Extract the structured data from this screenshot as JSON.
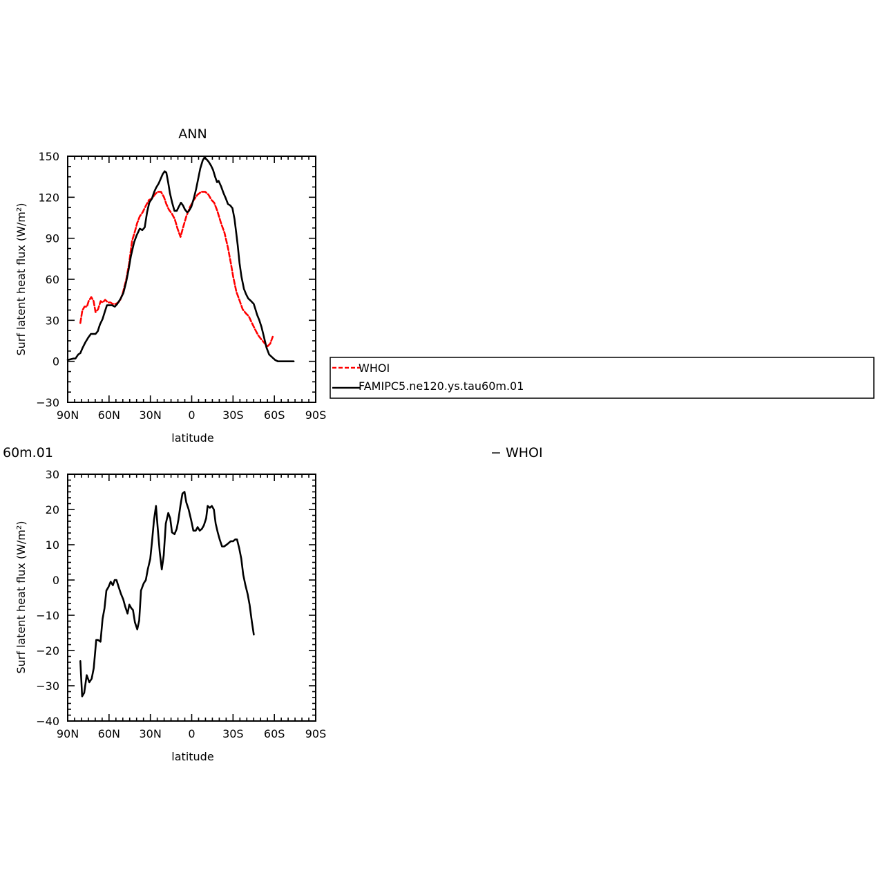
{
  "chart_data": [
    {
      "type": "line",
      "title": "ANN",
      "xlabel": "latitude",
      "ylabel": "Surf latent heat flux (W/m²)",
      "xlim": [
        90,
        -90
      ],
      "ylim": [
        -30,
        150
      ],
      "x_ticks": [
        {
          "value": 90,
          "label": "90N"
        },
        {
          "value": 60,
          "label": "60N"
        },
        {
          "value": 30,
          "label": "30N"
        },
        {
          "value": 0,
          "label": "0"
        },
        {
          "value": -30,
          "label": "30S"
        },
        {
          "value": -60,
          "label": "60S"
        },
        {
          "value": -90,
          "label": "90S"
        }
      ],
      "y_ticks": [
        {
          "value": -30,
          "label": "−30"
        },
        {
          "value": 0,
          "label": "0"
        },
        {
          "value": 30,
          "label": "30"
        },
        {
          "value": 60,
          "label": "60"
        },
        {
          "value": 90,
          "label": "90"
        },
        {
          "value": 120,
          "label": "120"
        },
        {
          "value": 150,
          "label": "150"
        }
      ],
      "series": [
        {
          "name": "WHOI",
          "color": "#ff0000",
          "dash": true,
          "points": [
            [
              80.8,
              28
            ],
            [
              79.4,
              37
            ],
            [
              77.8,
              40
            ],
            [
              76,
              40
            ],
            [
              74.8,
              44
            ],
            [
              72.9,
              47
            ],
            [
              71.2,
              44
            ],
            [
              69.8,
              36
            ],
            [
              68,
              38
            ],
            [
              66.1,
              44
            ],
            [
              64.6,
              43
            ],
            [
              62.8,
              45
            ],
            [
              60.7,
              43
            ],
            [
              58.9,
              43
            ],
            [
              57.5,
              42
            ],
            [
              54.9,
              42
            ],
            [
              52.2,
              44
            ],
            [
              50,
              50
            ],
            [
              47.5,
              60
            ],
            [
              45.4,
              72
            ],
            [
              43.3,
              88
            ],
            [
              41.2,
              95
            ],
            [
              39.6,
              101
            ],
            [
              37.7,
              106
            ],
            [
              35.6,
              109
            ],
            [
              33.2,
              114
            ],
            [
              31,
              118
            ],
            [
              28.9,
              119
            ],
            [
              26.7,
              122
            ],
            [
              24.7,
              124
            ],
            [
              22.3,
              124
            ],
            [
              20.1,
              120
            ],
            [
              18.4,
              115
            ],
            [
              16.6,
              111
            ],
            [
              14.4,
              108
            ],
            [
              12.3,
              104
            ],
            [
              10.3,
              97
            ],
            [
              8.1,
              91
            ],
            [
              6.2,
              98
            ],
            [
              3.9,
              106
            ],
            [
              1.2,
              113
            ],
            [
              -1.5,
              118
            ],
            [
              -4.3,
              122
            ],
            [
              -7,
              124
            ],
            [
              -9.8,
              124
            ],
            [
              -12.1,
              122
            ],
            [
              -14.4,
              118
            ],
            [
              -16.3,
              116
            ],
            [
              -18.6,
              110
            ],
            [
              -21.3,
              101
            ],
            [
              -23.8,
              94
            ],
            [
              -26.3,
              83
            ],
            [
              -28.4,
              72
            ],
            [
              -30.1,
              62
            ],
            [
              -32.4,
              51
            ],
            [
              -34.9,
              44
            ],
            [
              -37,
              38
            ],
            [
              -39.4,
              35
            ],
            [
              -41.4,
              33
            ],
            [
              -43.7,
              28
            ],
            [
              -46.2,
              23
            ],
            [
              -48.3,
              19
            ],
            [
              -50.6,
              16
            ],
            [
              -53.1,
              13
            ],
            [
              -55.1,
              11
            ],
            [
              -57,
              13
            ],
            [
              -58.8,
              18
            ]
          ]
        },
        {
          "name": "FAMIPC5.ne120.ys.tau60m.01",
          "color": "#000000",
          "dash": false,
          "points": [
            [
              90,
              1
            ],
            [
              86,
              2
            ],
            [
              84.4,
              2
            ],
            [
              82.4,
              5
            ],
            [
              80.8,
              6
            ],
            [
              79.1,
              10
            ],
            [
              77.1,
              14
            ],
            [
              75.3,
              17
            ],
            [
              73.2,
              20
            ],
            [
              71.5,
              20
            ],
            [
              69.8,
              20
            ],
            [
              68.2,
              22
            ],
            [
              66.6,
              27
            ],
            [
              64.7,
              31
            ],
            [
              62.8,
              37
            ],
            [
              61.5,
              41
            ],
            [
              59.7,
              41
            ],
            [
              57.8,
              41
            ],
            [
              55.8,
              40
            ],
            [
              54,
              42
            ],
            [
              51.5,
              46
            ],
            [
              49.6,
              50
            ],
            [
              47.6,
              58
            ],
            [
              46,
              66
            ],
            [
              44.1,
              77
            ],
            [
              41.8,
              87
            ],
            [
              40,
              92
            ],
            [
              37.7,
              97
            ],
            [
              35.8,
              96
            ],
            [
              34.1,
              98
            ],
            [
              32.4,
              109
            ],
            [
              30.8,
              116
            ],
            [
              28.9,
              119
            ],
            [
              27.2,
              124
            ],
            [
              25.8,
              127
            ],
            [
              24,
              130
            ],
            [
              22.7,
              133
            ],
            [
              21,
              137
            ],
            [
              19.6,
              139
            ],
            [
              18.4,
              138
            ],
            [
              17.1,
              131
            ],
            [
              15.8,
              123
            ],
            [
              14.2,
              116
            ],
            [
              12.5,
              110
            ],
            [
              10.9,
              110
            ],
            [
              9.4,
              113
            ],
            [
              7.8,
              116
            ],
            [
              6.3,
              114
            ],
            [
              4.9,
              111
            ],
            [
              3.3,
              109
            ],
            [
              2,
              110
            ],
            [
              0.3,
              113
            ],
            [
              -1.5,
              119
            ],
            [
              -3.2,
              126
            ],
            [
              -4.6,
              133
            ],
            [
              -6.2,
              141
            ],
            [
              -8,
              147
            ],
            [
              -9.2,
              149
            ],
            [
              -10.6,
              148
            ],
            [
              -12.3,
              146
            ],
            [
              -14.1,
              143
            ],
            [
              -15.5,
              140
            ],
            [
              -17,
              135
            ],
            [
              -18.4,
              131
            ],
            [
              -19.5,
              132
            ],
            [
              -21.3,
              128
            ],
            [
              -23.1,
              123
            ],
            [
              -24.8,
              119
            ],
            [
              -26.3,
              115
            ],
            [
              -28,
              114
            ],
            [
              -29.6,
              112
            ],
            [
              -31.1,
              104
            ],
            [
              -32.2,
              95
            ],
            [
              -33.4,
              85
            ],
            [
              -34.7,
              72
            ],
            [
              -36.1,
              62
            ],
            [
              -37.9,
              53
            ],
            [
              -39.5,
              49
            ],
            [
              -41,
              46
            ],
            [
              -43.1,
              44
            ],
            [
              -45,
              42
            ],
            [
              -46.3,
              38
            ],
            [
              -47.5,
              34
            ],
            [
              -49.1,
              30
            ],
            [
              -50.7,
              25
            ],
            [
              -52.4,
              18
            ],
            [
              -54.3,
              10
            ],
            [
              -56.2,
              5
            ],
            [
              -58.3,
              3
            ],
            [
              -60.5,
              1
            ],
            [
              -62.5,
              0
            ],
            [
              -64.4,
              0
            ],
            [
              -66.5,
              0
            ],
            [
              -68.6,
              0
            ],
            [
              -71,
              0
            ],
            [
              -74,
              0
            ]
          ]
        }
      ],
      "legend": {
        "placement": "right-of-plot",
        "entries": [
          "WHOI",
          "FAMIPC5.ne120.ys.tau60m.01"
        ]
      }
    },
    {
      "type": "line",
      "title": "60m.01",
      "title_right": "− WHOI",
      "xlabel": "latitude",
      "ylabel": "Surf latent heat flux (W/m²)",
      "xlim": [
        90,
        -90
      ],
      "ylim": [
        -40,
        30
      ],
      "x_ticks": [
        {
          "value": 90,
          "label": "90N"
        },
        {
          "value": 60,
          "label": "60N"
        },
        {
          "value": 30,
          "label": "30N"
        },
        {
          "value": 0,
          "label": "0"
        },
        {
          "value": -30,
          "label": "30S"
        },
        {
          "value": -60,
          "label": "60S"
        },
        {
          "value": -90,
          "label": "90S"
        }
      ],
      "y_ticks": [
        {
          "value": -40,
          "label": "−40"
        },
        {
          "value": -30,
          "label": "−30"
        },
        {
          "value": -20,
          "label": "−20"
        },
        {
          "value": -10,
          "label": "−10"
        },
        {
          "value": 0,
          "label": "0"
        },
        {
          "value": 10,
          "label": "10"
        },
        {
          "value": 20,
          "label": "20"
        },
        {
          "value": 30,
          "label": "30"
        }
      ],
      "series": [
        {
          "name": "",
          "color": "#000000",
          "dash": false,
          "points": [
            [
              80.8,
              -23
            ],
            [
              79.5,
              -33
            ],
            [
              78,
              -32
            ],
            [
              76.2,
              -27
            ],
            [
              74.3,
              -29
            ],
            [
              72.6,
              -28
            ],
            [
              71.1,
              -25
            ],
            [
              69.3,
              -17
            ],
            [
              68,
              -17
            ],
            [
              66.2,
              -17.5
            ],
            [
              64.7,
              -11
            ],
            [
              63.3,
              -8
            ],
            [
              61.9,
              -3
            ],
            [
              60.4,
              -2
            ],
            [
              58.8,
              -0.5
            ],
            [
              57.2,
              -1.5
            ],
            [
              55.9,
              0
            ],
            [
              54.6,
              0
            ],
            [
              53,
              -2
            ],
            [
              51.3,
              -4
            ],
            [
              49.7,
              -5.5
            ],
            [
              48.3,
              -7.5
            ],
            [
              46.6,
              -9.5
            ],
            [
              45.3,
              -7
            ],
            [
              43.8,
              -8
            ],
            [
              42.6,
              -8.5
            ],
            [
              41.2,
              -12
            ],
            [
              39.5,
              -14
            ],
            [
              38.1,
              -11.5
            ],
            [
              36.8,
              -3
            ],
            [
              34.9,
              -1
            ],
            [
              33.3,
              0
            ],
            [
              31.9,
              3
            ],
            [
              30.1,
              6
            ],
            [
              28.8,
              11
            ],
            [
              27.4,
              17
            ],
            [
              25.9,
              21
            ],
            [
              24.7,
              15
            ],
            [
              23.2,
              8
            ],
            [
              21.7,
              3
            ],
            [
              20.3,
              7
            ],
            [
              18.8,
              16
            ],
            [
              17,
              19
            ],
            [
              15.6,
              17.5
            ],
            [
              14.3,
              13.5
            ],
            [
              12.5,
              13
            ],
            [
              10.9,
              14.5
            ],
            [
              9.7,
              17
            ],
            [
              8.2,
              21
            ],
            [
              6.7,
              24.5
            ],
            [
              5.2,
              25
            ],
            [
              3.9,
              22
            ],
            [
              2.2,
              20
            ],
            [
              0.4,
              17
            ],
            [
              -1.2,
              14
            ],
            [
              -2.9,
              14
            ],
            [
              -4.3,
              15
            ],
            [
              -5.8,
              14
            ],
            [
              -7.4,
              14.5
            ],
            [
              -8.8,
              15.5
            ],
            [
              -10.5,
              17.5
            ],
            [
              -11.6,
              21
            ],
            [
              -13.2,
              20.5
            ],
            [
              -14.6,
              21
            ],
            [
              -16.1,
              20
            ],
            [
              -17.4,
              16
            ],
            [
              -18.9,
              13.5
            ],
            [
              -20.3,
              11.5
            ],
            [
              -22,
              9.5
            ],
            [
              -23.5,
              9.5
            ],
            [
              -25.3,
              10
            ],
            [
              -26.8,
              10.5
            ],
            [
              -28.4,
              11
            ],
            [
              -30.1,
              11
            ],
            [
              -31.6,
              11.5
            ],
            [
              -32.9,
              11.5
            ],
            [
              -34.5,
              9
            ],
            [
              -36,
              6
            ],
            [
              -37.4,
              1.5
            ],
            [
              -39,
              -1.5
            ],
            [
              -40.6,
              -4
            ],
            [
              -42,
              -7
            ],
            [
              -43.7,
              -12
            ],
            [
              -45.1,
              -15.5
            ]
          ]
        }
      ]
    }
  ]
}
